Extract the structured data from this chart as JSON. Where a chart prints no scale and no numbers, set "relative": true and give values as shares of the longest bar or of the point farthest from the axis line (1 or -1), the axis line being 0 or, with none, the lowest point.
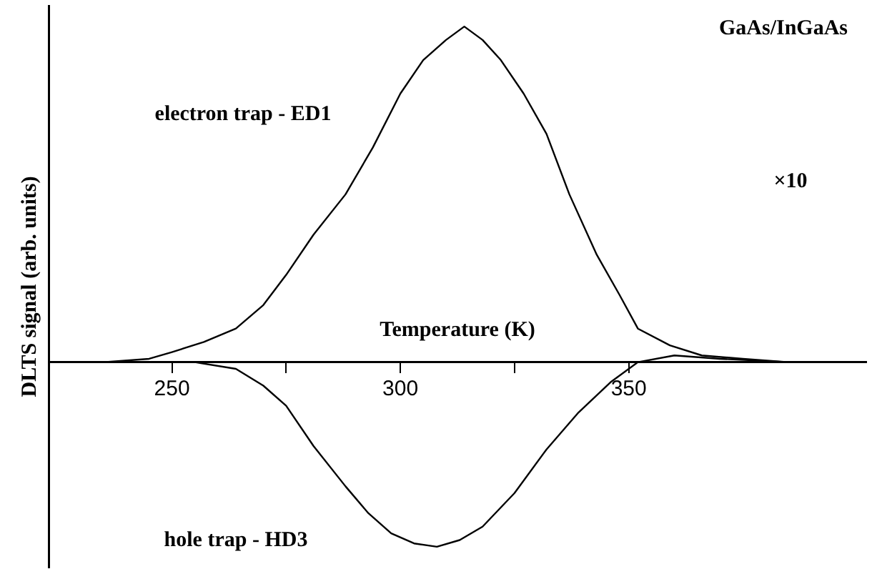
{
  "chart_data": {
    "type": "line",
    "relative": true,
    "xlabel": "Temperature (K)",
    "ylabel": "DLTS signal (arb. units)",
    "annotations": [
      "GaAs/InGaAs",
      "×10"
    ],
    "xlim": [
      223,
      402
    ],
    "xticks": [
      250,
      {
        "value": 275,
        "label": null
      },
      300,
      {
        "value": 325,
        "label": null
      },
      350
    ],
    "tick_labels": "x",
    "grid": false,
    "legend": false,
    "marker": "none",
    "line_style": "solid",
    "series": [
      {
        "name": "electron trap - ED1",
        "color": "#000000",
        "x": [
          223,
          235,
          245,
          250,
          257,
          264,
          270,
          275,
          281,
          288,
          294,
          300,
          305,
          310,
          314,
          318,
          322,
          327,
          332,
          337,
          343,
          348,
          352,
          359,
          366,
          375,
          385,
          402
        ],
        "values": [
          0,
          0,
          0.01,
          0.03,
          0.06,
          0.1,
          0.17,
          0.26,
          0.38,
          0.5,
          0.64,
          0.8,
          0.9,
          0.96,
          1,
          0.96,
          0.9,
          0.8,
          0.68,
          0.5,
          0.32,
          0.2,
          0.1,
          0.05,
          0.02,
          0.01,
          0,
          0
        ]
      },
      {
        "name": "hole trap - HD3",
        "color": "#000000",
        "x": [
          223,
          240,
          255,
          264,
          270,
          275,
          281,
          288,
          293,
          298,
          303,
          308,
          313,
          318,
          325,
          332,
          339,
          346,
          352,
          360,
          370,
          385,
          402
        ],
        "values": [
          0,
          0,
          0,
          -0.02,
          -0.07,
          -0.13,
          -0.25,
          -0.37,
          -0.45,
          -0.51,
          -0.54,
          -0.55,
          -0.53,
          -0.49,
          -0.39,
          -0.26,
          -0.15,
          -0.06,
          0,
          0.02,
          0.01,
          0,
          0
        ]
      }
    ]
  }
}
